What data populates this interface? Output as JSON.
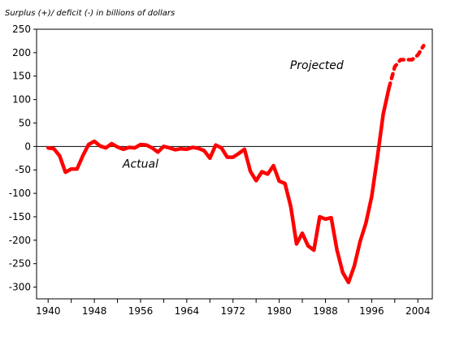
{
  "chart_data": {
    "type": "line",
    "title": "Surplus (+)/ deficit (-) in billions of dollars",
    "xlabel": "",
    "ylabel": "",
    "xlim": [
      1938,
      2006.5
    ],
    "ylim": [
      -325,
      250
    ],
    "x_ticks": [
      1940,
      1944,
      1948,
      1952,
      1956,
      1960,
      1964,
      1968,
      1972,
      1976,
      1980,
      1984,
      1988,
      1992,
      1996,
      2000,
      2004
    ],
    "x_tick_labels": [
      "1940",
      "",
      "1948",
      "",
      "1956",
      "",
      "1964",
      "",
      "1972",
      "",
      "1980",
      "",
      "1988",
      "",
      "1996",
      "",
      "2004"
    ],
    "y_ticks": [
      250,
      200,
      150,
      100,
      50,
      0,
      -50,
      -100,
      -150,
      -200,
      -250,
      -300
    ],
    "zero_line": true,
    "grid": false,
    "series": [
      {
        "name": "",
        "style": "solid",
        "color": "#ff0000",
        "points": [
          [
            1940,
            -3
          ],
          [
            1941,
            -5
          ],
          [
            1942,
            -20
          ],
          [
            1943,
            -55
          ],
          [
            1944,
            -48
          ],
          [
            1945,
            -48
          ],
          [
            1946,
            -20
          ],
          [
            1947,
            4
          ],
          [
            1948,
            11
          ],
          [
            1949,
            1
          ],
          [
            1950,
            -3
          ],
          [
            1951,
            6
          ],
          [
            1952,
            -1
          ],
          [
            1953,
            -6
          ],
          [
            1954,
            -2
          ],
          [
            1955,
            -3
          ],
          [
            1956,
            4
          ],
          [
            1957,
            3
          ],
          [
            1958,
            -3
          ],
          [
            1959,
            -12
          ],
          [
            1960,
            0
          ],
          [
            1961,
            -3
          ],
          [
            1962,
            -7
          ],
          [
            1963,
            -5
          ],
          [
            1964,
            -6
          ],
          [
            1965,
            -2
          ],
          [
            1966,
            -4
          ],
          [
            1967,
            -9
          ],
          [
            1968,
            -25
          ],
          [
            1969,
            3
          ],
          [
            1970,
            -3
          ],
          [
            1971,
            -23
          ],
          [
            1972,
            -23
          ],
          [
            1973,
            -15
          ],
          [
            1974,
            -6
          ],
          [
            1975,
            -53
          ],
          [
            1976,
            -73
          ],
          [
            1977,
            -54
          ],
          [
            1978,
            -59
          ],
          [
            1979,
            -41
          ],
          [
            1980,
            -74
          ],
          [
            1981,
            -79
          ],
          [
            1982,
            -128
          ],
          [
            1983,
            -208
          ],
          [
            1984,
            -185
          ],
          [
            1985,
            -212
          ],
          [
            1986,
            -221
          ],
          [
            1987,
            -150
          ],
          [
            1988,
            -155
          ],
          [
            1989,
            -152
          ],
          [
            1990,
            -221
          ],
          [
            1991,
            -269
          ],
          [
            1992,
            -290
          ],
          [
            1993,
            -255
          ],
          [
            1994,
            -203
          ],
          [
            1995,
            -164
          ],
          [
            1996,
            -107
          ],
          [
            1997,
            -22
          ],
          [
            1998,
            69
          ],
          [
            1999,
            125
          ]
        ]
      },
      {
        "name": "",
        "style": "dashed",
        "color": "#ff0000",
        "points": [
          [
            1999,
            125
          ],
          [
            2000,
            170
          ],
          [
            2001,
            185
          ],
          [
            2002,
            185
          ],
          [
            2003,
            185
          ],
          [
            2004,
            195
          ],
          [
            2005,
            215
          ]
        ]
      }
    ],
    "annotations": [
      {
        "text": "Actual",
        "x": 1956,
        "y": -45
      },
      {
        "text": "Projected",
        "x": 1986.5,
        "y": 165
      }
    ]
  }
}
